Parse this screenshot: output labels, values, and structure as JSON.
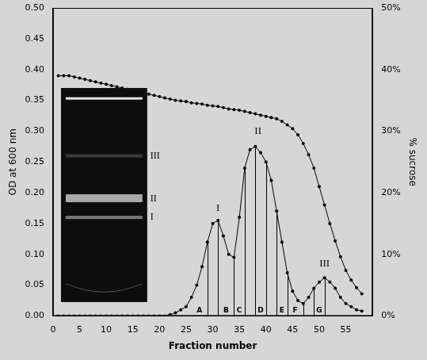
{
  "chart_data": {
    "type": "line",
    "x_label": "Fraction number",
    "y_label": "OD at 600 nm",
    "y2_label": "% sucrose",
    "x": [
      1,
      2,
      3,
      4,
      5,
      6,
      7,
      8,
      9,
      10,
      11,
      12,
      13,
      14,
      15,
      16,
      17,
      18,
      19,
      20,
      21,
      22,
      23,
      24,
      25,
      26,
      27,
      28,
      29,
      30,
      31,
      32,
      33,
      34,
      35,
      36,
      37,
      38,
      39,
      40,
      41,
      42,
      43,
      44,
      45,
      46,
      47,
      48,
      49,
      50,
      51,
      52,
      53,
      54,
      55,
      56,
      57,
      58
    ],
    "series": [
      {
        "name": "OD at 600 nm",
        "color": "#000000",
        "marker": "circle",
        "line_style": "solid",
        "values": [
          0,
          0,
          0,
          0,
          0,
          0,
          0,
          0,
          0,
          0,
          0,
          0,
          0,
          0,
          0,
          0,
          0,
          0,
          0,
          0,
          0,
          0.002,
          0.005,
          0.01,
          0.015,
          0.03,
          0.05,
          0.08,
          0.12,
          0.15,
          0.155,
          0.13,
          0.1,
          0.095,
          0.16,
          0.24,
          0.27,
          0.275,
          0.265,
          0.25,
          0.22,
          0.17,
          0.12,
          0.07,
          0.04,
          0.025,
          0.02,
          0.03,
          0.045,
          0.055,
          0.062,
          0.055,
          0.045,
          0.03,
          0.02,
          0.015,
          0.01,
          0.008
        ]
      },
      {
        "name": "% sucrose",
        "axis": "y2",
        "color": "#000000",
        "marker": "circle",
        "line_style": "solid",
        "values": [
          39,
          39,
          39,
          38.8,
          38.6,
          38.4,
          38.2,
          38,
          37.8,
          37.6,
          37.4,
          37.2,
          37,
          36.8,
          36.6,
          36.4,
          36.2,
          36,
          35.8,
          35.6,
          35.4,
          35.2,
          35,
          34.9,
          34.8,
          34.6,
          34.5,
          34.4,
          34.2,
          34.1,
          34,
          33.8,
          33.6,
          33.5,
          33.4,
          33.2,
          33,
          32.8,
          32.6,
          32.4,
          32.2,
          32,
          31.6,
          31,
          30.4,
          29.4,
          28,
          26.2,
          24,
          21,
          18,
          15,
          12.2,
          9.6,
          7.4,
          5.8,
          4.6,
          3.6
        ]
      }
    ],
    "xlim": [
      0,
      60
    ],
    "xticks": [
      0,
      5,
      10,
      15,
      20,
      25,
      30,
      35,
      40,
      45,
      50,
      55
    ],
    "ylim": [
      0,
      0.5
    ],
    "yticks": [
      {
        "value": 0,
        "label": "0.00"
      },
      {
        "value": 0.05,
        "label": "0.05"
      },
      {
        "value": 0.1,
        "label": "0.10"
      },
      {
        "value": 0.15,
        "label": "0.15"
      },
      {
        "value": 0.2,
        "label": "0.20"
      },
      {
        "value": 0.25,
        "label": "0.25"
      },
      {
        "value": 0.3,
        "label": "0.30"
      },
      {
        "value": 0.35,
        "label": "0.35"
      },
      {
        "value": 0.4,
        "label": "0.40"
      },
      {
        "value": 0.45,
        "label": "0.45"
      },
      {
        "value": 0.5,
        "label": "0.50"
      }
    ],
    "y2lim": [
      0,
      50
    ],
    "y2ticks": [
      {
        "value": 0,
        "label": "0%"
      },
      {
        "value": 10,
        "label": "10%"
      },
      {
        "value": 20,
        "label": "20%"
      },
      {
        "value": 30,
        "label": "30%"
      },
      {
        "value": 40,
        "label": "40%"
      },
      {
        "value": 50,
        "label": "50%"
      }
    ],
    "grid": false,
    "annotations": [
      {
        "text": "I",
        "x": 31,
        "y": 0.175
      },
      {
        "text": "II",
        "x": 38.5,
        "y": 0.3
      },
      {
        "text": "III",
        "x": 51,
        "y": 0.085
      }
    ],
    "region_labels": [
      {
        "label": "A",
        "x": 27.5,
        "y": 0.008
      },
      {
        "label": "B",
        "x": 32.5,
        "y": 0.008
      },
      {
        "label": "C",
        "x": 35,
        "y": 0.008
      },
      {
        "label": "D",
        "x": 39,
        "y": 0.008
      },
      {
        "label": "E",
        "x": 43,
        "y": 0.008
      },
      {
        "label": "F",
        "x": 45.5,
        "y": 0.008
      },
      {
        "label": "G",
        "x": 50,
        "y": 0.008
      }
    ],
    "fraction_lines": [
      29,
      31,
      34,
      36,
      38,
      40,
      42,
      44,
      47,
      49,
      51
    ],
    "inset": {
      "labels": [
        "III",
        "II",
        "I"
      ]
    }
  }
}
